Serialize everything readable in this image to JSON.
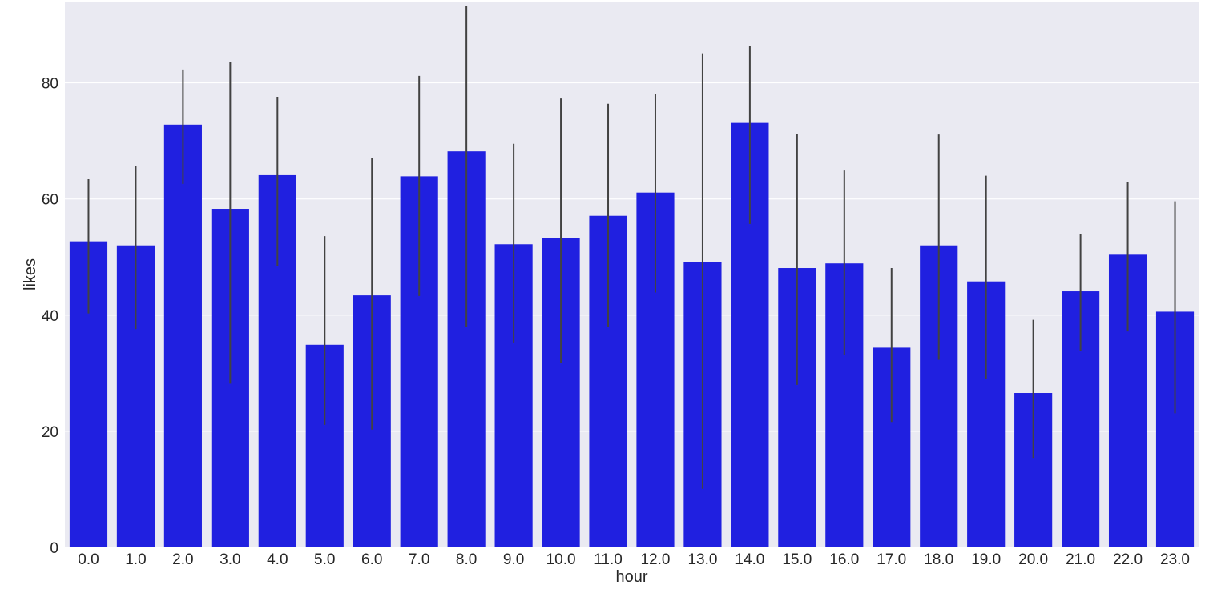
{
  "chart_data": {
    "type": "bar",
    "title": "",
    "xlabel": "hour",
    "ylabel": "likes",
    "ylim": [
      0,
      94
    ],
    "yticks": [
      0,
      20,
      40,
      60,
      80
    ],
    "grid": true,
    "background_color": "#EAEAF2",
    "grid_color": "#FFFFFF",
    "bar_color": "#2020E0",
    "errorbar_color": "#424242",
    "categories": [
      "0.0",
      "1.0",
      "2.0",
      "3.0",
      "4.0",
      "5.0",
      "6.0",
      "7.0",
      "8.0",
      "9.0",
      "10.0",
      "11.0",
      "12.0",
      "13.0",
      "14.0",
      "15.0",
      "16.0",
      "17.0",
      "18.0",
      "19.0",
      "20.0",
      "21.0",
      "22.0",
      "23.0"
    ],
    "values": [
      52.7,
      52.0,
      72.8,
      58.3,
      64.1,
      34.9,
      43.4,
      63.9,
      68.2,
      52.2,
      53.3,
      57.1,
      61.1,
      49.2,
      73.1,
      48.1,
      48.9,
      34.4,
      52.0,
      45.8,
      26.6,
      44.1,
      50.4,
      40.6
    ],
    "error_low": [
      40.3,
      37.6,
      62.6,
      28.2,
      48.4,
      21.1,
      20.3,
      43.3,
      37.9,
      35.3,
      31.7,
      37.9,
      43.9,
      10.1,
      55.7,
      28.0,
      33.2,
      21.6,
      32.3,
      29.0,
      15.4,
      33.9,
      37.2,
      23.1
    ],
    "error_high": [
      63.4,
      65.7,
      82.3,
      83.6,
      77.6,
      53.6,
      67.0,
      81.2,
      93.3,
      69.5,
      77.3,
      76.4,
      78.1,
      85.1,
      86.3,
      71.2,
      64.9,
      48.1,
      71.1,
      64.0,
      39.2,
      53.9,
      62.9,
      59.6
    ]
  }
}
